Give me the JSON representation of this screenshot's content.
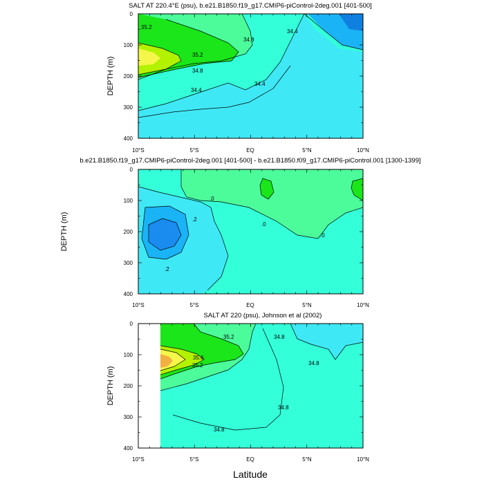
{
  "chart_data": [
    {
      "type": "contour",
      "title": "SALT AT 220.4°E (psu), b.e21.B1850.f19_g17.CMIP6-piControl-2deg.001 [401-500]",
      "xlabel": "",
      "ylabel": "DEPTH (m)",
      "xlim": [
        -10,
        10
      ],
      "ylim": [
        400,
        0
      ],
      "x_tick_labels": [
        "10°S",
        "5°S",
        "EQ",
        "5°N",
        "10°N"
      ],
      "y_tick_labels": [
        "0",
        "100",
        "200",
        "300",
        "400"
      ],
      "contour_labels": [
        "35.2",
        "34.8",
        "34.4",
        "35.2",
        "34.8",
        "34.4",
        "34.4"
      ]
    },
    {
      "type": "contour",
      "title": "b.e21.B1850.f19_g17.CMIP6-piControl-2deg.001 [401-500] - b.e21.B1850.f09_g17.CMIP6-piControl.001 [1300-1399]",
      "xlabel": "",
      "ylabel": "DEPTH (m)",
      "xlim": [
        -10,
        10
      ],
      "ylim": [
        400,
        0
      ],
      "x_tick_labels": [
        "10°S",
        "5°S",
        "EQ",
        "5°N",
        "10°N"
      ],
      "y_tick_labels": [
        "0",
        "100",
        "200",
        "300",
        "400"
      ],
      "contour_labels": [
        ".0",
        ".2",
        ".0",
        ".0",
        ".2"
      ]
    },
    {
      "type": "contour",
      "title": "SALT AT 220 (psu), Johnson et al (2002)",
      "xlabel": "Latitude",
      "ylabel": "DEPTH (m)",
      "xlim": [
        -10,
        10
      ],
      "ylim": [
        400,
        0
      ],
      "x_tick_labels": [
        "10°S",
        "5°S",
        "EQ",
        "5°N",
        "10°N"
      ],
      "y_tick_labels": [
        "0",
        "100",
        "200",
        "300",
        "400"
      ],
      "contour_labels": [
        "35.2",
        "34.8",
        "35.6",
        "35.2",
        "34.8",
        "34.8",
        "34.8"
      ]
    }
  ]
}
